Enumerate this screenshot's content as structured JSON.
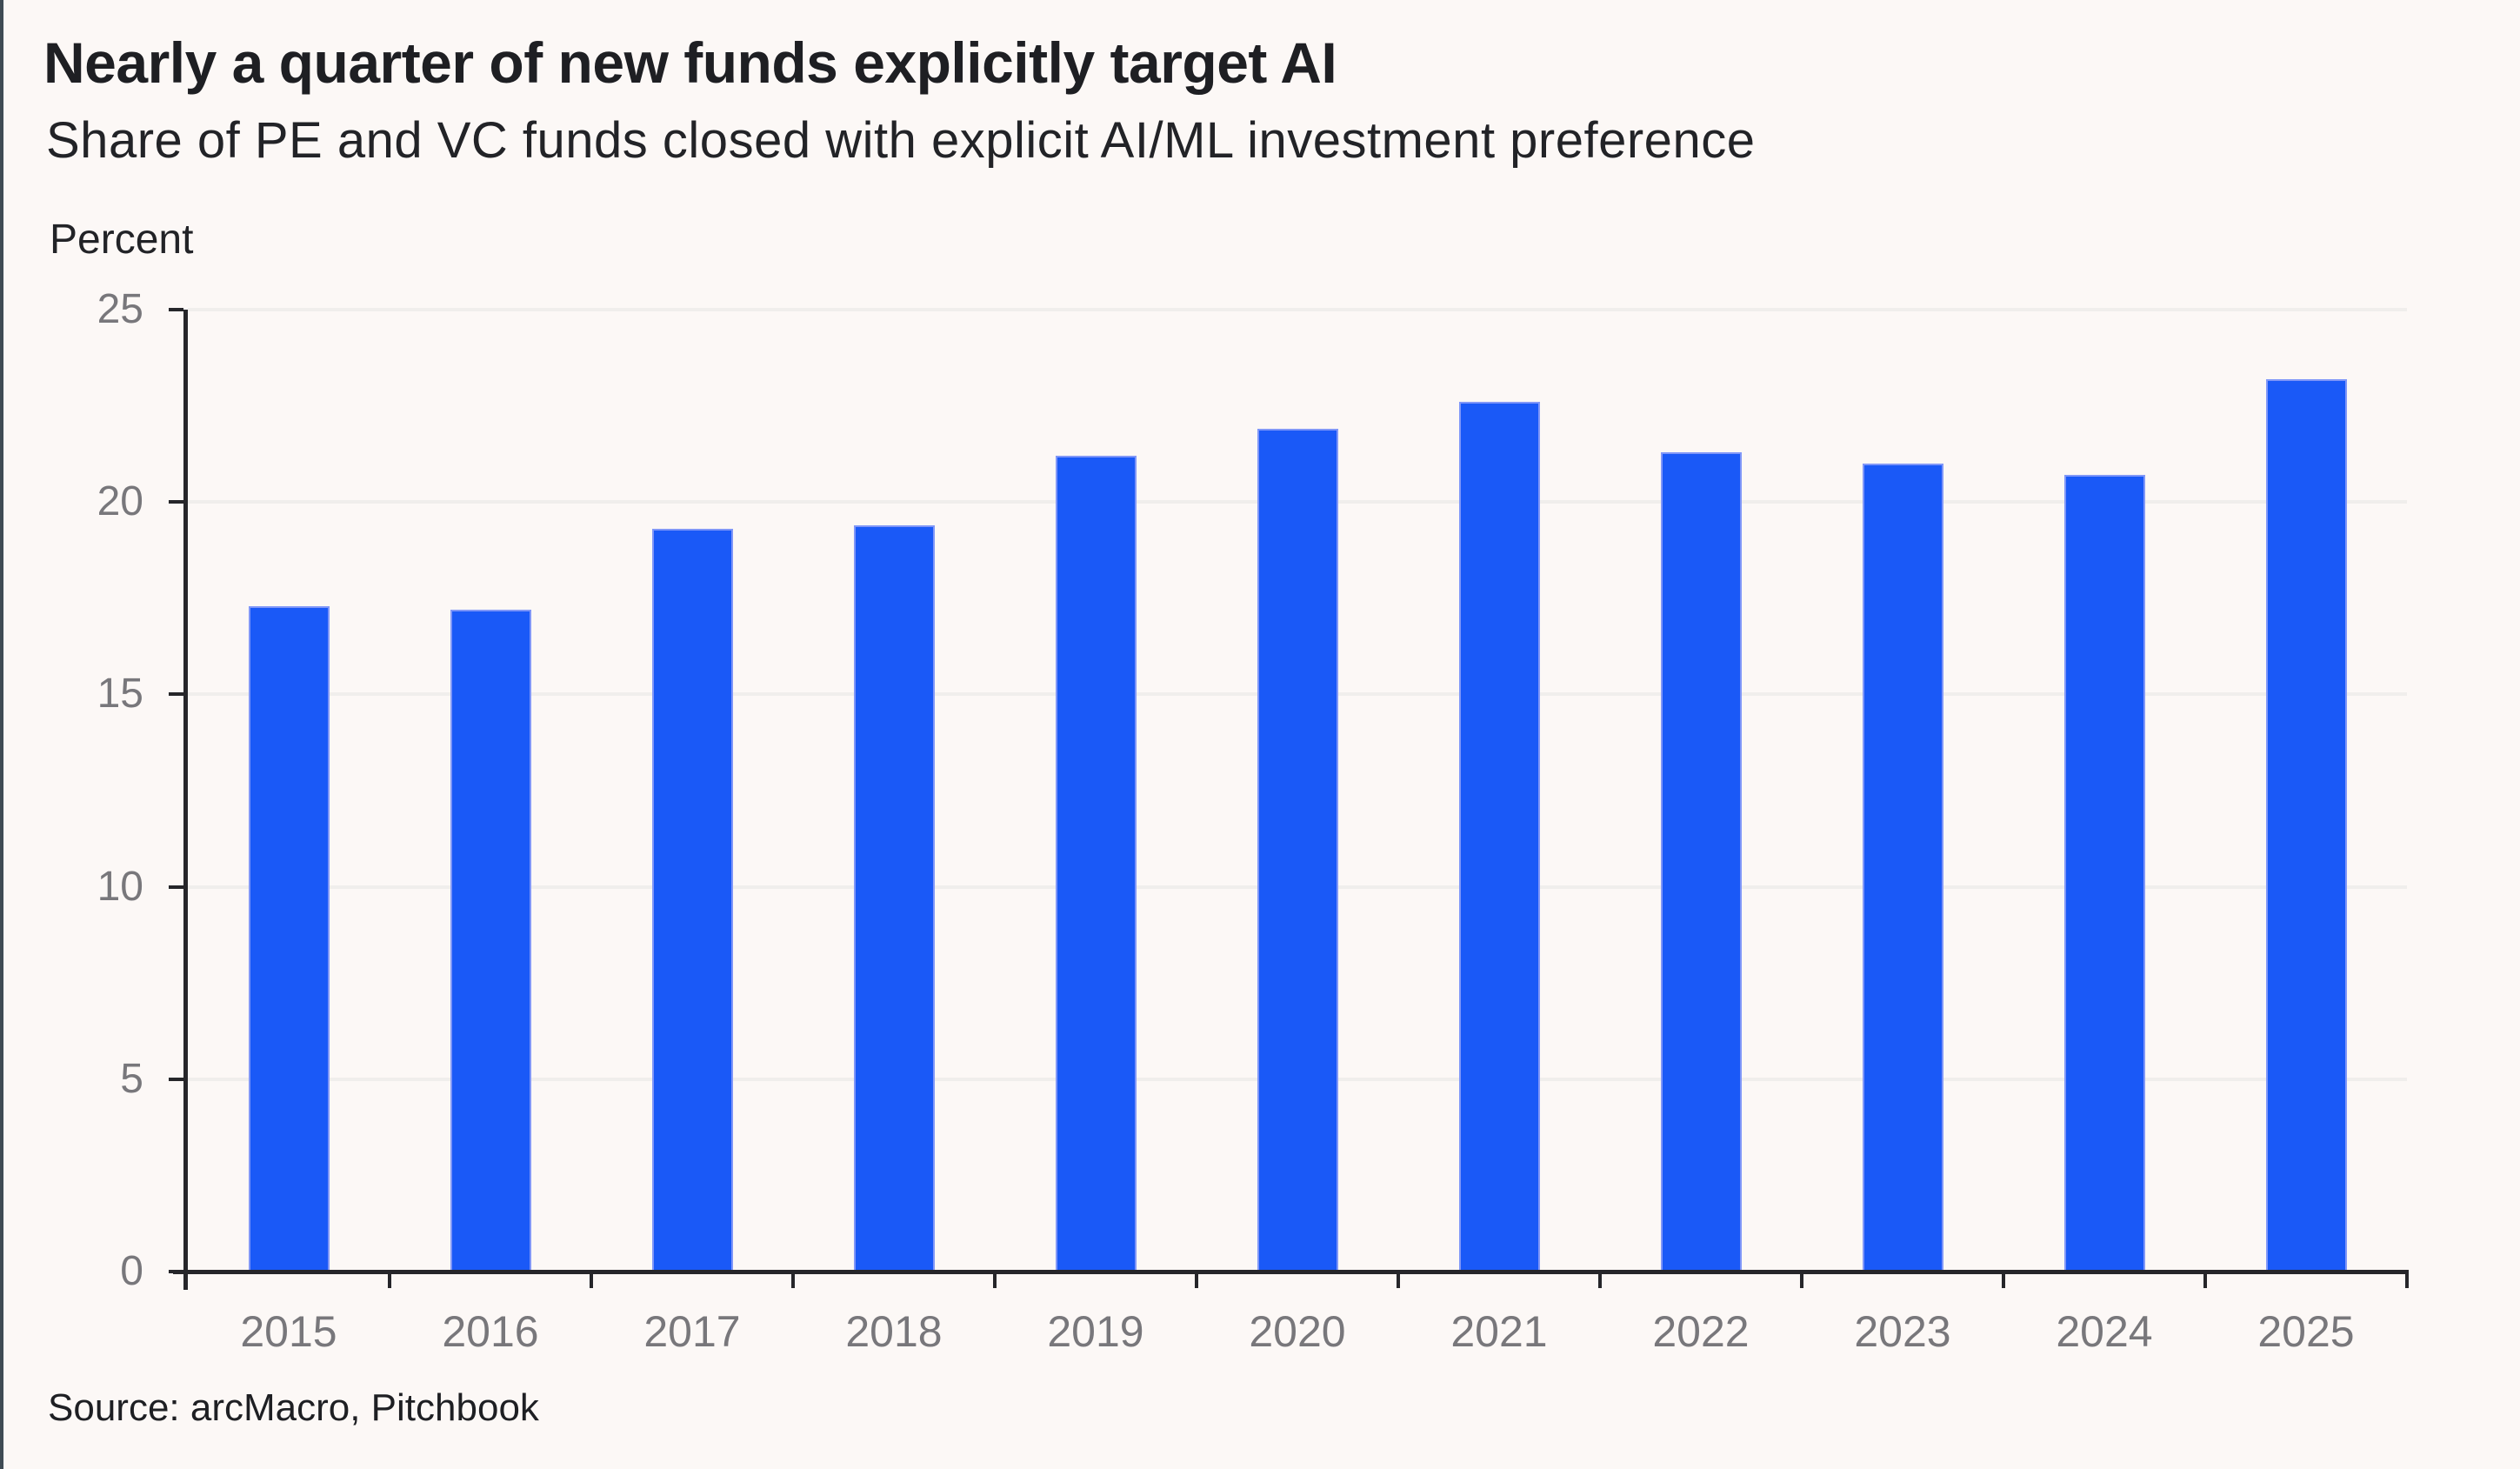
{
  "page": {
    "background_color": "#FCF8F6",
    "left_edge_color": "#3F4B54"
  },
  "header": {
    "title": "Nearly a quarter of new funds explicitly target AI",
    "subtitle": "Share of PE and VC funds closed with explicit AI/ML investment preference"
  },
  "y_unit_label": "Percent",
  "source_note": "Source: arcMacro, Pitchbook",
  "colors": {
    "bar": "#1A59F7",
    "bar_edge": "#8097F8",
    "axis": "#26262A",
    "gridline": "#F0EEEC",
    "tick_label": "#78777B",
    "text": "#1E1F23"
  },
  "chart_data": {
    "type": "bar",
    "title": "Nearly a quarter of new funds explicitly target AI",
    "subtitle": "Share of PE and VC funds closed with explicit AI/ML investment preference",
    "xlabel": "",
    "ylabel": "Percent",
    "categories": [
      "2015",
      "2016",
      "2017",
      "2018",
      "2019",
      "2020",
      "2021",
      "2022",
      "2023",
      "2024",
      "2025"
    ],
    "values": [
      17.3,
      17.2,
      19.3,
      19.4,
      21.2,
      21.9,
      22.6,
      21.3,
      21.0,
      20.7,
      23.2
    ],
    "ylim": [
      0,
      25
    ],
    "yticks": [
      0,
      5,
      10,
      15,
      20,
      25
    ],
    "grid": "horizontal",
    "legend": "none",
    "bar_color": "#1A59F7",
    "source": "Source: arcMacro, Pitchbook"
  }
}
